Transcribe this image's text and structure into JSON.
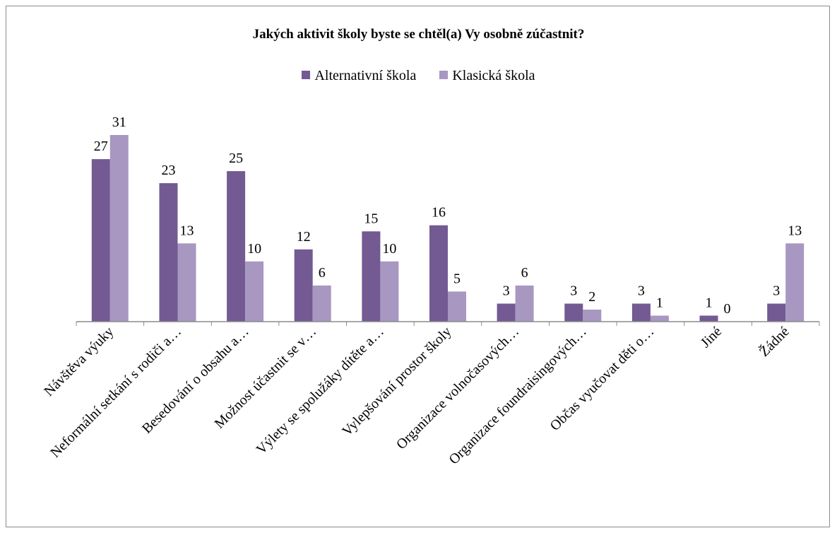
{
  "chart_data": {
    "type": "bar",
    "title": "Jakých aktivit školy byste se chtěl(a) Vy osobně zúčastnit?",
    "categories": [
      "Návštěva výuky",
      "Neformální setkání s rodiči a…",
      "Besedování o obsahu a…",
      "Možnost účastnit se v…",
      "Výlety se spolužáky dítěte a…",
      "Vylepšování prostor školy",
      "Organizace volnočasových…",
      "Organizace foundraisingových…",
      "Občas vyučovat děti o…",
      "Jiné",
      "Žádné"
    ],
    "series": [
      {
        "name": "Alternativní škola",
        "color": "#735a92",
        "values": [
          27,
          23,
          25,
          12,
          15,
          16,
          3,
          3,
          3,
          1,
          3
        ]
      },
      {
        "name": "Klasická škola",
        "color": "#a797c1",
        "values": [
          31,
          13,
          10,
          6,
          10,
          5,
          6,
          2,
          1,
          0,
          13
        ]
      }
    ],
    "ylim": [
      0,
      31
    ],
    "legend_position": "top",
    "grid": false,
    "axis_color": "#8c8c8c"
  }
}
